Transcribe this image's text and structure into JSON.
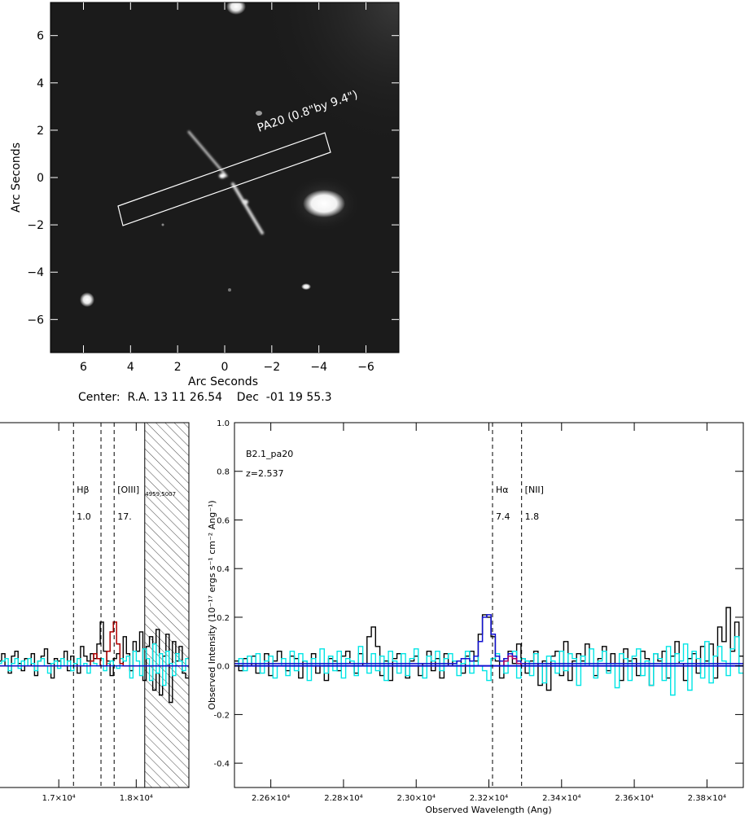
{
  "image_panel": {
    "xlabel": "Arc Seconds",
    "ylabel": "Arc Seconds",
    "x_ticks": [
      6,
      4,
      2,
      0,
      -2,
      -4,
      -6
    ],
    "y_ticks": [
      6,
      4,
      2,
      0,
      -2,
      -4,
      -6
    ],
    "xlim": [
      7.4,
      -7.4
    ],
    "ylim": [
      -7.4,
      7.4
    ],
    "slit_label": "PA20 (0.8\"by 9.4\")",
    "center_label": "Center:  R.A. 13 11 26.54    Dec  -01 19 55.3"
  },
  "chart_data": [
    {
      "type": "line",
      "panel": "left-spectrum",
      "x_tick_labels": [
        "1.7×10⁴",
        "1.8×10⁴"
      ],
      "x_ticks": [
        17000,
        18000
      ],
      "xlim": [
        16220,
        18680
      ],
      "ylim": [
        -0.5,
        1.0
      ],
      "lines": [
        {
          "x": 17190,
          "label": "Hβ",
          "flux": "1.0"
        },
        {
          "x": 17545,
          "label": "",
          "flux": ""
        },
        {
          "x": 17715,
          "label": "[OIII]",
          "subscript": "4959,5007",
          "flux": "17."
        }
      ],
      "hatched_range": [
        18110,
        18680
      ],
      "series": [
        {
          "color": "#000000",
          "values": [
            0.02,
            0.05,
            0.0,
            -0.03,
            0.04,
            0.06,
            0.01,
            -0.02,
            0.03,
            0.0,
            0.05,
            -0.04,
            0.02,
            0.04,
            0.07,
            0.01,
            -0.05,
            0.03,
            0.02,
            0.0,
            0.06,
            -0.02,
            0.04,
            0.01,
            -0.03,
            0.08,
            0.04,
            0.02,
            0.05,
            0.03,
            0.09,
            0.18,
            0.06,
            0.02,
            -0.04,
            0.03,
            0.05,
            0.01,
            0.12,
            0.05,
            -0.02,
            0.1,
            0.06,
            0.14,
            -0.06,
            0.08,
            0.12,
            -0.1,
            0.15,
            -0.12,
            0.04,
            0.13,
            -0.15,
            0.1,
            0.02,
            0.08,
            -0.03,
            -0.05
          ]
        },
        {
          "color": "#00e5e5",
          "values": [
            0.01,
            0.02,
            0.03,
            -0.02,
            0.01,
            0.03,
            -0.01,
            0.02,
            0.0,
            0.03,
            0.01,
            -0.02,
            0.02,
            0.03,
            0.0,
            -0.03,
            0.01,
            0.02,
            -0.01,
            0.03,
            0.0,
            0.02,
            -0.02,
            0.01,
            0.03,
            0.0,
            0.01,
            -0.03,
            0.02,
            0.01,
            0.0,
            0.03,
            -0.02,
            0.01,
            0.02,
            0.0,
            -0.01,
            0.03,
            0.02,
            0.04,
            -0.05,
            0.06,
            0.02,
            -0.04,
            0.07,
            0.03,
            -0.06,
            0.09,
            -0.03,
            0.05,
            -0.08,
            0.06,
            0.01,
            -0.04,
            0.05,
            0.02,
            -0.02,
            0.03
          ]
        },
        {
          "color": "#b00000",
          "values": [
            0.0,
            0.0,
            0.0,
            0.0,
            0.0,
            0.0,
            0.0,
            0.0,
            0.0,
            0.0,
            0.0,
            0.0,
            0.0,
            0.0,
            0.0,
            0.0,
            0.0,
            0.0,
            0.0,
            0.0,
            0.0,
            0.0,
            0.0,
            0.0,
            0.0,
            0.0,
            0.0,
            0.0,
            0.02,
            0.05,
            0.03,
            0.0,
            0.0,
            0.06,
            0.14,
            0.18,
            0.09,
            0.01,
            0.0,
            0.0,
            0.0,
            0.0,
            0.0,
            0.0,
            0.0,
            0.0,
            0.0,
            0.0,
            0.0,
            0.0,
            0.0,
            0.0,
            0.0,
            0.0,
            0.0,
            0.0,
            0.0,
            0.0
          ]
        }
      ]
    },
    {
      "type": "line",
      "panel": "right-spectrum",
      "xlabel": "Observed Wavelength (Ang)",
      "ylabel": "Observed Intensity (10⁻¹⁷ ergs s⁻¹ cm⁻² Ang⁻¹)",
      "xlim": [
        22500,
        23900
      ],
      "ylim": [
        -0.5,
        1.0
      ],
      "x_ticks": [
        22600,
        22800,
        23000,
        23200,
        23400,
        23600,
        23800
      ],
      "x_tick_labels": [
        "2.26×10⁴",
        "2.28×10⁴",
        "2.30×10⁴",
        "2.32×10⁴",
        "2.34×10⁴",
        "2.36×10⁴",
        "2.38×10⁴"
      ],
      "y_ticks": [
        -0.4,
        -0.2,
        0.0,
        0.2,
        0.4,
        0.6,
        0.8,
        1.0
      ],
      "y_tick_labels": [
        "-0.4",
        "-0.2",
        "0.0",
        "0.2",
        "0.4",
        "0.6",
        "0.8",
        "1.0"
      ],
      "annotation_name": "B2.1_pa20",
      "annotation_z": "z=2.537",
      "lines": [
        {
          "x": 23210,
          "label": "Hα",
          "flux": "7.4"
        },
        {
          "x": 23290,
          "label": "[NII]",
          "flux": "1.8"
        }
      ],
      "series": [
        {
          "color": "#000000",
          "values": [
            0.02,
            -0.02,
            0.03,
            0.0,
            0.04,
            -0.03,
            0.01,
            0.05,
            -0.04,
            0.02,
            0.06,
            0.01,
            -0.02,
            0.04,
            0.03,
            -0.05,
            0.02,
            0.0,
            0.05,
            -0.03,
            0.01,
            -0.06,
            0.03,
            0.02,
            -0.02,
            0.04,
            0.06,
            0.01,
            -0.03,
            0.05,
            0.0,
            0.12,
            0.16,
            0.08,
            -0.04,
            0.02,
            -0.06,
            0.03,
            0.05,
            0.0,
            -0.05,
            0.02,
            0.04,
            -0.04,
            0.01,
            0.06,
            -0.02,
            0.03,
            -0.05,
            0.05,
            0.0,
            0.02,
            0.02,
            -0.03,
            0.04,
            0.06,
            0.02,
            0.13,
            0.21,
            0.2,
            0.12,
            0.02,
            -0.05,
            0.03,
            0.06,
            0.01,
            0.09,
            0.03,
            -0.03,
            0.02,
            0.06,
            -0.08,
            0.02,
            -0.1,
            0.04,
            0.06,
            -0.04,
            0.1,
            -0.06,
            0.02,
            0.05,
            0.02,
            0.09,
            0.0,
            -0.04,
            0.03,
            0.08,
            -0.02,
            0.05,
            0.0,
            -0.06,
            0.07,
            0.02,
            0.03,
            -0.04,
            0.06,
            0.03,
            -0.08,
            0.05,
            0.02,
            0.06,
            -0.05,
            0.04,
            0.1,
            0.01,
            -0.06,
            0.03,
            0.05,
            -0.03,
            0.08,
            0.02,
            0.09,
            -0.05,
            0.16,
            0.1,
            0.24,
            0.06,
            0.18,
            0.04
          ]
        },
        {
          "color": "#00e5e5",
          "values": [
            0.0,
            0.03,
            -0.02,
            0.04,
            0.01,
            0.05,
            -0.03,
            0.02,
            0.04,
            -0.05,
            0.0,
            0.03,
            -0.04,
            0.06,
            -0.02,
            0.05,
            0.02,
            -0.06,
            0.03,
            0.0,
            0.07,
            -0.03,
            0.04,
            -0.02,
            0.06,
            -0.05,
            0.03,
            0.02,
            -0.04,
            0.08,
            0.01,
            -0.03,
            0.05,
            -0.02,
            0.04,
            -0.06,
            0.06,
            0.02,
            -0.03,
            0.05,
            -0.04,
            0.03,
            0.07,
            0.0,
            -0.05,
            0.04,
            0.02,
            0.06,
            -0.02,
            0.03,
            0.05,
            0.02,
            -0.04,
            0.01,
            0.06,
            -0.03,
            0.04,
            0.0,
            -0.02,
            -0.06,
            0.03,
            0.05,
            0.02,
            -0.03,
            0.04,
            0.06,
            -0.05,
            0.03,
            0.02,
            -0.04,
            0.05,
            0.01,
            -0.07,
            0.04,
            0.02,
            -0.03,
            0.06,
            -0.02,
            0.05,
            0.03,
            -0.08,
            0.04,
            0.0,
            0.07,
            -0.05,
            0.02,
            0.06,
            -0.03,
            0.01,
            -0.09,
            0.05,
            0.03,
            -0.06,
            0.04,
            0.07,
            -0.04,
            0.02,
            -0.08,
            0.05,
            0.03,
            -0.06,
            0.08,
            -0.12,
            0.05,
            0.02,
            0.09,
            -0.1,
            0.06,
            0.03,
            -0.05,
            0.1,
            -0.07,
            0.04,
            0.08,
            0.02,
            -0.04,
            0.07,
            0.12,
            -0.03
          ]
        },
        {
          "color": "#1010d0",
          "values": [
            0.01,
            0.01,
            0.01,
            0.01,
            0.01,
            0.01,
            0.01,
            0.01,
            0.01,
            0.01,
            0.01,
            0.01,
            0.01,
            0.01,
            0.01,
            0.01,
            0.01,
            0.01,
            0.01,
            0.01,
            0.01,
            0.01,
            0.01,
            0.01,
            0.01,
            0.01,
            0.01,
            0.01,
            0.01,
            0.01,
            0.01,
            0.01,
            0.01,
            0.01,
            0.01,
            0.01,
            0.01,
            0.01,
            0.01,
            0.01,
            0.01,
            0.01,
            0.01,
            0.01,
            0.01,
            0.01,
            0.01,
            0.01,
            0.01,
            0.01,
            0.01,
            0.01,
            0.02,
            0.03,
            0.03,
            0.02,
            0.04,
            0.1,
            0.2,
            0.21,
            0.13,
            0.04,
            0.02,
            0.03,
            0.05,
            0.04,
            0.02,
            0.01,
            0.01,
            0.01,
            0.01,
            0.01,
            0.01,
            0.01,
            0.01,
            0.01,
            0.01,
            0.01,
            0.01,
            0.01,
            0.01,
            0.01,
            0.01,
            0.01,
            0.01,
            0.01,
            0.01,
            0.01,
            0.01,
            0.01,
            0.01,
            0.01,
            0.01,
            0.01,
            0.01,
            0.01,
            0.01,
            0.01,
            0.01,
            0.01,
            0.01,
            0.01,
            0.01,
            0.01,
            0.01,
            0.01,
            0.01,
            0.01,
            0.01,
            0.01,
            0.01,
            0.01,
            0.01,
            0.01,
            0.01,
            0.01,
            0.01,
            0.01,
            0.01
          ]
        },
        {
          "color": "#b00060",
          "values": [
            0.0,
            0.0,
            0.0,
            0.0,
            0.0,
            0.0,
            0.0,
            0.0,
            0.0,
            0.0,
            0.0,
            0.0,
            0.0,
            0.0,
            0.0,
            0.0,
            0.0,
            0.0,
            0.0,
            0.0,
            0.0,
            0.0,
            0.0,
            0.0,
            0.0,
            0.0,
            0.0,
            0.0,
            0.0,
            0.0,
            0.0,
            0.0,
            0.0,
            0.0,
            0.0,
            0.0,
            0.0,
            0.0,
            0.0,
            0.0,
            0.0,
            0.0,
            0.0,
            0.0,
            0.0,
            0.0,
            0.0,
            0.0,
            0.0,
            0.0,
            0.0,
            0.0,
            0.0,
            0.0,
            0.0,
            0.0,
            0.0,
            0.0,
            0.0,
            0.0,
            0.0,
            0.0,
            0.0,
            0.02,
            0.04,
            0.03,
            0.01,
            0.0,
            0.0,
            0.0,
            0.0,
            0.0,
            0.0,
            0.0,
            0.0,
            0.0,
            0.0,
            0.0,
            0.0,
            0.0,
            0.0,
            0.0,
            0.0,
            0.0,
            0.0,
            0.0,
            0.0,
            0.0,
            0.0,
            0.0,
            0.0,
            0.0,
            0.0,
            0.0,
            0.0,
            0.0,
            0.0,
            0.0,
            0.0,
            0.0,
            0.0,
            0.0,
            0.0,
            0.0,
            0.0,
            0.0,
            0.0,
            0.0,
            0.0,
            0.0,
            0.0,
            0.0,
            0.0,
            0.0,
            0.0,
            0.0,
            0.0,
            0.0,
            0.0
          ]
        }
      ]
    }
  ]
}
